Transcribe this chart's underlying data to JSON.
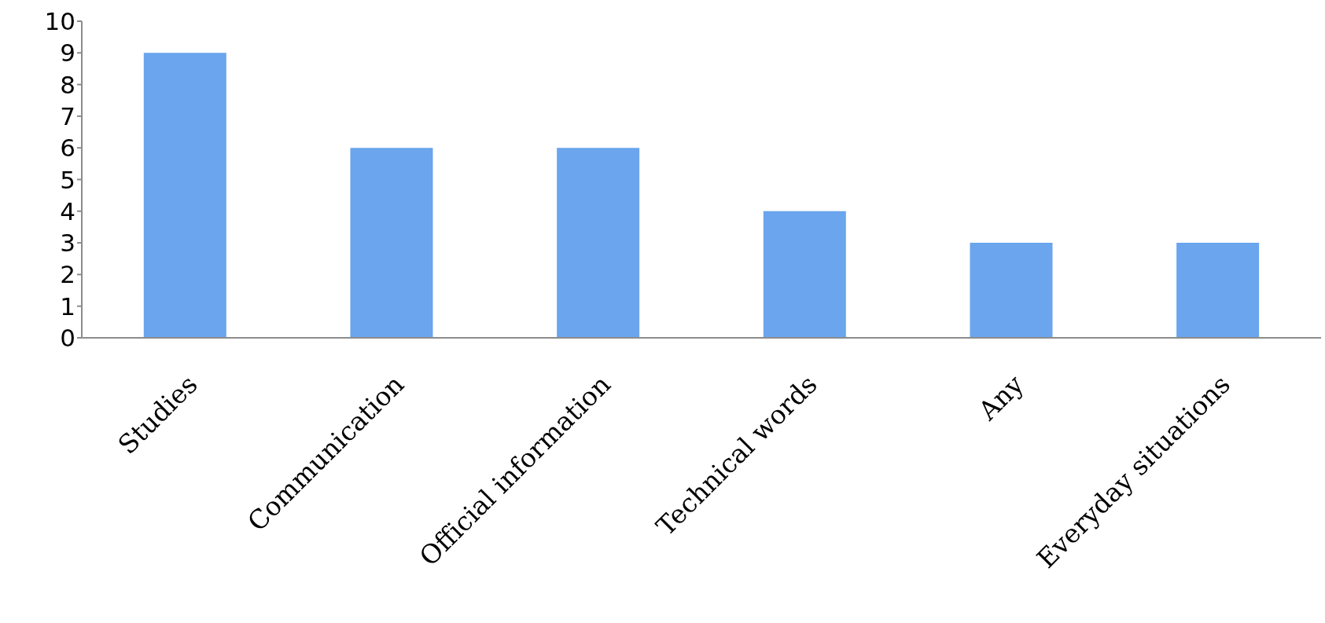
{
  "chart_data": {
    "type": "bar",
    "categories": [
      "Studies",
      "Communication",
      "Official information",
      "Technical words",
      "Any",
      "Everyday situations"
    ],
    "values": [
      9,
      6,
      6,
      4,
      3,
      3
    ],
    "color": "#6aa5ee",
    "ylim": [
      0,
      10
    ],
    "yticks": [
      0,
      1,
      2,
      3,
      4,
      5,
      6,
      7,
      8,
      9,
      10
    ],
    "grid": false
  }
}
